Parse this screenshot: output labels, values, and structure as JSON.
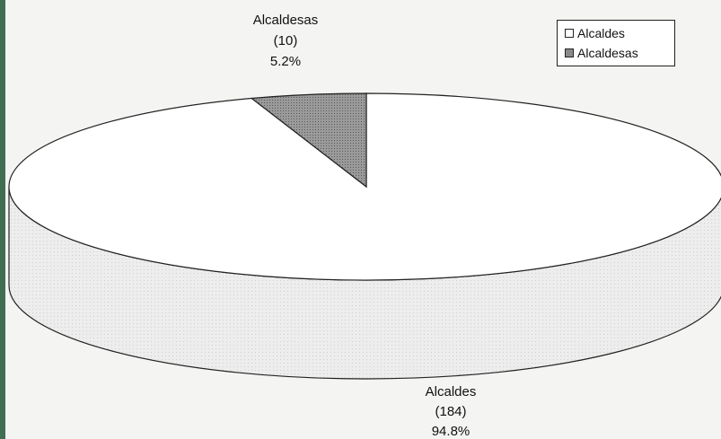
{
  "chart_data": {
    "type": "pie",
    "style": "3d",
    "title": "",
    "slices": [
      {
        "name": "Alcaldes",
        "count": "(184)",
        "percent": "94.8%",
        "value": 94.8,
        "color": "#ffffff"
      },
      {
        "name": "Alcaldesas",
        "count": "(10)",
        "percent": "5.2%",
        "value": 5.2,
        "color": "#8a8a8a"
      }
    ],
    "legend": {
      "placement": "top-right",
      "entries": [
        "Alcaldes",
        "Alcaldesas"
      ]
    }
  }
}
